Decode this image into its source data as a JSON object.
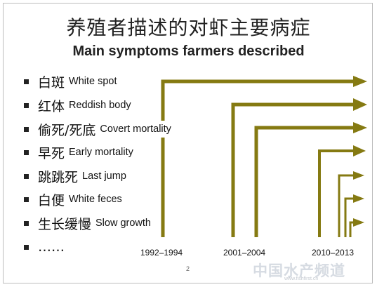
{
  "title_zh": "养殖者描述的对虾主要病症",
  "title_en": "Main symptoms farmers described",
  "colors": {
    "arrow": "#857a12",
    "text": "#111111"
  },
  "symptoms": [
    {
      "zh": "白斑",
      "en": "White spot",
      "start": "1992–1994"
    },
    {
      "zh": "红体",
      "en": "Reddish body",
      "start": "2001–2004"
    },
    {
      "zh": "偷死/死底",
      "en": "Covert mortality",
      "start": "2001–2004"
    },
    {
      "zh": "早死",
      "en": "Early mortality",
      "start": "2010–2013"
    },
    {
      "zh": "跳跳死",
      "en": "Last jump",
      "start": "2010–2013"
    },
    {
      "zh": "白便",
      "en": "White feces",
      "start": "2010–2013"
    },
    {
      "zh": "生长缓慢",
      "en": "Slow growth",
      "start": "2010–2013"
    }
  ],
  "more": "……",
  "timeline": [
    "1992–1994",
    "2001–2004",
    "2010–2013"
  ],
  "page_number": "2",
  "watermark": "中国水产频道",
  "watermark_url": "www.fishfirst.cn"
}
